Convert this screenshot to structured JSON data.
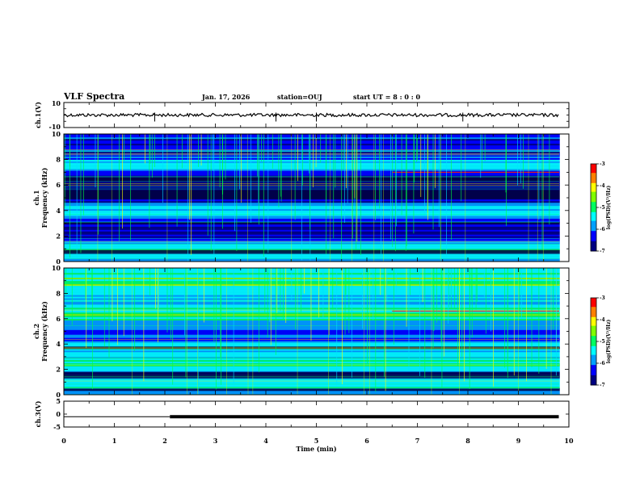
{
  "header": {
    "title": "VLF Spectra",
    "date": "Jan. 17, 2026",
    "station": "station=OUJ",
    "start_ut": "start UT =  8 : 0  : 0"
  },
  "chart_data": {
    "type": "spectrogram",
    "x_axis": {
      "label": "Time (min)",
      "range": [
        0,
        10
      ],
      "ticks": [
        "0",
        "1",
        "2",
        "3",
        "4",
        "5",
        "6",
        "7",
        "8",
        "9",
        "10"
      ]
    },
    "panels": [
      {
        "name": "ch1-waveform",
        "ylabel": "ch.1(V)",
        "ylim": [
          -10,
          10
        ],
        "ticks": [
          "10",
          "-10"
        ],
        "level": 0,
        "trace_end_min": 9.8
      },
      {
        "name": "ch1-spectrogram",
        "ylabel_line1": "ch.1",
        "ylabel_line2": "Frequency (kHz)",
        "ylim": [
          0,
          10
        ],
        "ticks": [
          "0",
          "2",
          "4",
          "6",
          "8",
          "10"
        ],
        "colorbar": {
          "label": "log(PSD)(V²/Hz)",
          "range": [
            -7,
            -3
          ],
          "ticks": [
            "-3",
            "-4",
            "-5",
            "-6",
            "-7"
          ]
        }
      },
      {
        "name": "ch2-spectrogram",
        "ylabel_line1": "ch.2",
        "ylabel_line2": "Frequency (kHz)",
        "ylim": [
          0,
          10
        ],
        "ticks": [
          "0",
          "2",
          "4",
          "6",
          "8",
          "10"
        ],
        "colorbar": {
          "label": "log(PSD)(V²/Hz)",
          "range": [
            -7,
            -3
          ],
          "ticks": [
            "-3",
            "-4",
            "-5",
            "-6",
            "-7"
          ]
        }
      },
      {
        "name": "ch3-waveform",
        "ylabel": "ch.3(V)",
        "ylim": [
          -5,
          5
        ],
        "ticks": [
          "5",
          "0",
          "-5"
        ],
        "level": -1,
        "step_start_min": 2.1,
        "trace_end_min": 9.8
      }
    ]
  },
  "colors": {
    "colormap": [
      "#000080",
      "#0000ff",
      "#00a0ff",
      "#00ffff",
      "#00ff60",
      "#80ff00",
      "#ffff00",
      "#ff8000",
      "#ff0000",
      "#ffffff"
    ],
    "frame": "#000000"
  }
}
